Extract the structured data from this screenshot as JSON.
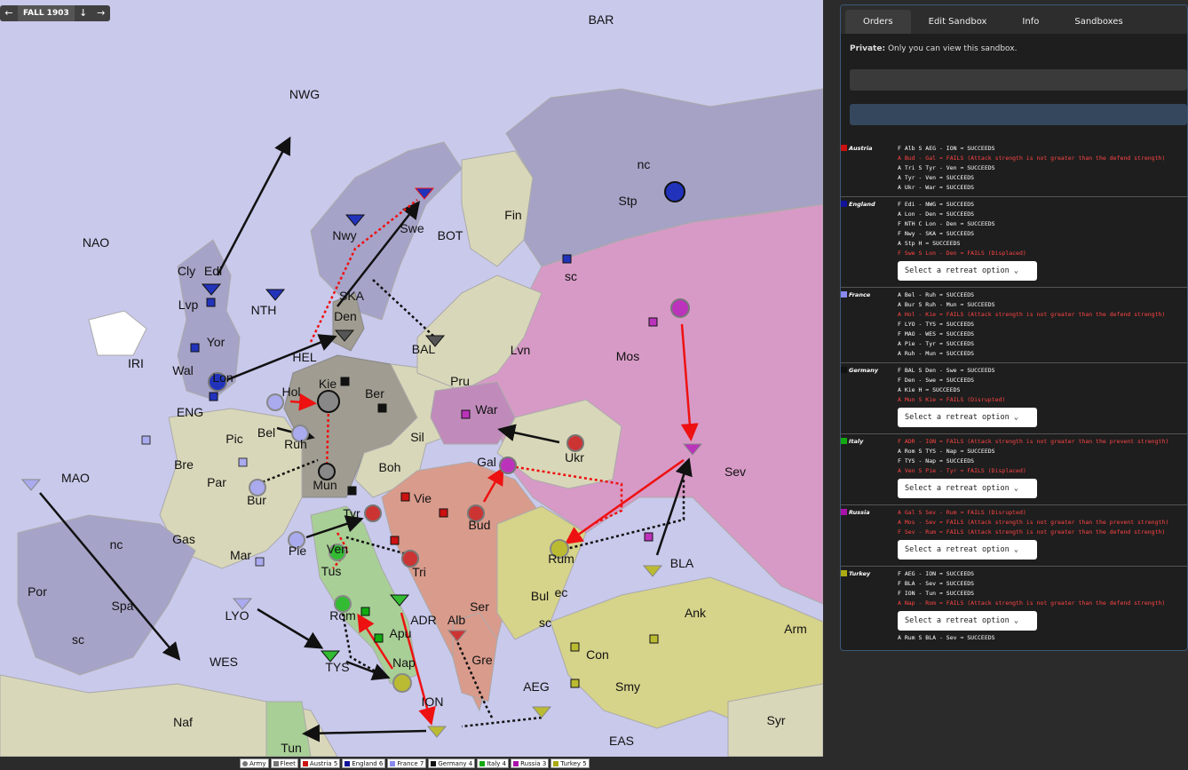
{
  "season": {
    "label": "FALL 1903",
    "prev_icon": "arrow-left-icon",
    "next_icon": "arrow-right-icon"
  },
  "colors": {
    "austria": "#cc1111",
    "england": "#111199",
    "france": "#8888ee",
    "germany": "#111111",
    "italy": "#11aa11",
    "russia": "#aa11aa",
    "turkey": "#aaaa11"
  },
  "map_labels": [
    "BAR",
    "NWG",
    "NAO",
    "Cly",
    "Edi",
    "Lvp",
    "Yor",
    "Wal",
    "Lon",
    "IRI",
    "NTH",
    "Nwy",
    "Swe",
    "Fin",
    "Stp",
    "nc",
    "sc",
    "BOT",
    "SKA",
    "Den",
    "HEL",
    "BAL",
    "Lvn",
    "Mos",
    "Hol",
    "Kie",
    "Ber",
    "Pru",
    "War",
    "ENG",
    "Bel",
    "Ruh",
    "Sil",
    "Pic",
    "Bre",
    "Par",
    "Mun",
    "Boh",
    "Gal",
    "Ukr",
    "Sev",
    "Bur",
    "Vie",
    "Bud",
    "Tyr",
    "Rum",
    "MAO",
    "Gas",
    "Mar",
    "Pie",
    "Ven",
    "Tri",
    "Tus",
    "BLA",
    "Por",
    "Spa",
    "nc",
    "sc",
    "LYO",
    "Rom",
    "Apu",
    "ADR",
    "Alb",
    "Ser",
    "Bul",
    "ec",
    "sc",
    "Ank",
    "Arm",
    "WES",
    "TYS",
    "Nap",
    "Gre",
    "AEG",
    "Con",
    "Smy",
    "Naf",
    "ION",
    "Tun",
    "EAS",
    "Syr"
  ],
  "legend": [
    {
      "label": "Army",
      "color": "#777777"
    },
    {
      "label": "Fleet",
      "color": "#777777"
    },
    {
      "label": "Austria 5",
      "color": "#cc1111"
    },
    {
      "label": "England 6",
      "color": "#111199"
    },
    {
      "label": "France 7",
      "color": "#8888ee"
    },
    {
      "label": "Germany 4",
      "color": "#111111"
    },
    {
      "label": "Italy 4",
      "color": "#11aa11"
    },
    {
      "label": "Russia 3",
      "color": "#aa11aa"
    },
    {
      "label": "Turkey 5",
      "color": "#aaaa11"
    }
  ],
  "panel": {
    "tabs": [
      "Orders",
      "Edit Sandbox",
      "Info",
      "Sandboxes"
    ],
    "private_bold": "Private:",
    "private_text": " Only you can view this sandbox.",
    "retreat_placeholder": "Select a retreat option ⌄",
    "powers": [
      {
        "name": "Austria",
        "color": "#cc1111",
        "retreat": false,
        "orders": [
          {
            "text": "F Alb S AEG - ION ➡ SUCCEEDS",
            "fail": false
          },
          {
            "text": "A Bud - Gal ➡ FAILS (Attack strength is not greater than the defend strength)",
            "fail": true
          },
          {
            "text": "A Tri S Tyr - Ven ➡ SUCCEEDS",
            "fail": false
          },
          {
            "text": "A Tyr - Ven ➡ SUCCEEDS",
            "fail": false
          },
          {
            "text": "A Ukr - War ➡ SUCCEEDS",
            "fail": false
          }
        ]
      },
      {
        "name": "England",
        "color": "#111199",
        "retreat": true,
        "orders": [
          {
            "text": "F Edi - NWG ➡ SUCCEEDS",
            "fail": false
          },
          {
            "text": "A Lon - Den ➡ SUCCEEDS",
            "fail": false
          },
          {
            "text": "F NTH C Lon - Den ➡ SUCCEEDS",
            "fail": false
          },
          {
            "text": "F Nwy - SKA ➡ SUCCEEDS",
            "fail": false
          },
          {
            "text": "A Stp H ➡ SUCCEEDS",
            "fail": false
          },
          {
            "text": "F Swe S Lon - Den ➡ FAILS (Displaced)",
            "fail": true
          }
        ]
      },
      {
        "name": "France",
        "color": "#8888ee",
        "retreat": false,
        "orders": [
          {
            "text": "A Bel - Ruh ➡ SUCCEEDS",
            "fail": false
          },
          {
            "text": "A Bur S Ruh - Mun ➡ SUCCEEDS",
            "fail": false
          },
          {
            "text": "A Hol - Kie ➡ FAILS (Attack strength is not greater than the defend strength)",
            "fail": true
          },
          {
            "text": "F LYO - TYS ➡ SUCCEEDS",
            "fail": false
          },
          {
            "text": "F MAO - WES ➡ SUCCEEDS",
            "fail": false
          },
          {
            "text": "A Pie - Tyr ➡ SUCCEEDS",
            "fail": false
          },
          {
            "text": "A Ruh - Mun ➡ SUCCEEDS",
            "fail": false
          }
        ]
      },
      {
        "name": "Germany",
        "color": "#111111",
        "retreat": true,
        "orders": [
          {
            "text": "F BAL S Den - Swe ➡ SUCCEEDS",
            "fail": false
          },
          {
            "text": "F Den - Swe ➡ SUCCEEDS",
            "fail": false
          },
          {
            "text": "A Kie H ➡ SUCCEEDS",
            "fail": false
          },
          {
            "text": "A Mun S Kie ➡ FAILS (Disrupted)",
            "fail": true
          }
        ]
      },
      {
        "name": "Italy",
        "color": "#11aa11",
        "retreat": true,
        "orders": [
          {
            "text": "F ADR - ION ➡ FAILS (Attack strength is not greater than the prevent strength)",
            "fail": true
          },
          {
            "text": "A Rom S TYS - Nap ➡ SUCCEEDS",
            "fail": false
          },
          {
            "text": "F TYS - Nap ➡ SUCCEEDS",
            "fail": false
          },
          {
            "text": "A Ven S Pie - Tyr ➡ FAILS (Displaced)",
            "fail": true
          }
        ]
      },
      {
        "name": "Russia",
        "color": "#aa11aa",
        "retreat": true,
        "orders": [
          {
            "text": "A Gal S Sev - Rum ➡ FAILS (Disrupted)",
            "fail": true
          },
          {
            "text": "A Mos - Sev ➡ FAILS (Attack strength is not greater than the prevent strength)",
            "fail": true
          },
          {
            "text": "F Sev - Rum ➡ FAILS (Attack strength is not greater than the defend strength)",
            "fail": true
          }
        ]
      },
      {
        "name": "Turkey",
        "color": "#aaaa11",
        "retreat": true,
        "orders": [
          {
            "text": "F AEG - ION ➡ SUCCEEDS",
            "fail": false
          },
          {
            "text": "F BLA - Sev ➡ SUCCEEDS",
            "fail": false
          },
          {
            "text": "F ION - Tun ➡ SUCCEEDS",
            "fail": false
          },
          {
            "text": "A Nap - Rom ➡ FAILS (Attack strength is not greater than the defend strength)",
            "fail": true
          }
        ]
      }
    ],
    "tail_order": "A Rum S BLA - Sev ➡ SUCCEEDS"
  }
}
